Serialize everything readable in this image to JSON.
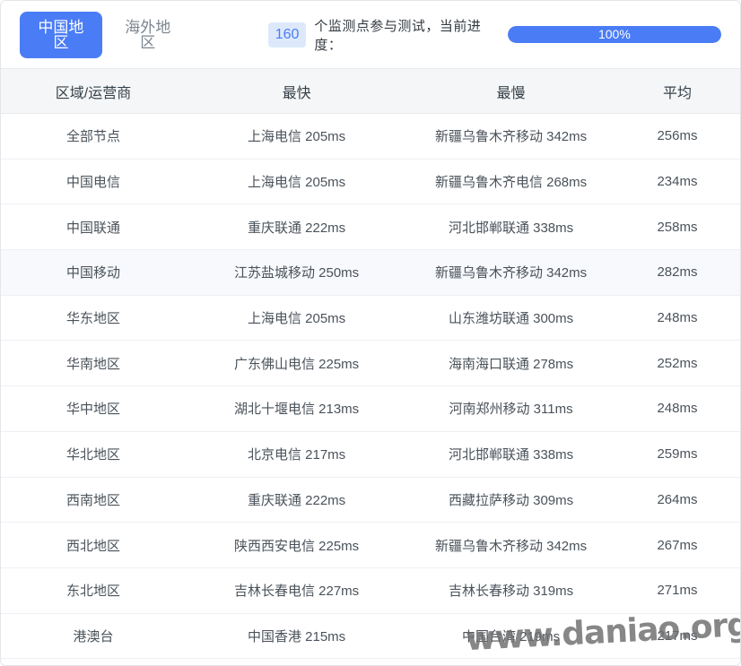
{
  "tabs": {
    "china": "中国地区",
    "overseas": "海外地区"
  },
  "status": {
    "monitor_count": "160",
    "label": "个监测点参与测试，当前进度：",
    "progress_percent": "100%",
    "progress_value": 100
  },
  "table": {
    "headers": {
      "region": "区域/运营商",
      "fastest": "最快",
      "slowest": "最慢",
      "average": "平均"
    },
    "rows": [
      {
        "region": "全部节点",
        "fastest": "上海电信 205ms",
        "slowest": "新疆乌鲁木齐移动 342ms",
        "average": "256ms"
      },
      {
        "region": "中国电信",
        "fastest": "上海电信 205ms",
        "slowest": "新疆乌鲁木齐电信 268ms",
        "average": "234ms"
      },
      {
        "region": "中国联通",
        "fastest": "重庆联通 222ms",
        "slowest": "河北邯郸联通 338ms",
        "average": "258ms"
      },
      {
        "region": "中国移动",
        "fastest": "江苏盐城移动 250ms",
        "slowest": "新疆乌鲁木齐移动 342ms",
        "average": "282ms"
      },
      {
        "region": "华东地区",
        "fastest": "上海电信 205ms",
        "slowest": "山东潍坊联通 300ms",
        "average": "248ms"
      },
      {
        "region": "华南地区",
        "fastest": "广东佛山电信 225ms",
        "slowest": "海南海口联通 278ms",
        "average": "252ms"
      },
      {
        "region": "华中地区",
        "fastest": "湖北十堰电信 213ms",
        "slowest": "河南郑州移动 311ms",
        "average": "248ms"
      },
      {
        "region": "华北地区",
        "fastest": "北京电信 217ms",
        "slowest": "河北邯郸联通 338ms",
        "average": "259ms"
      },
      {
        "region": "西南地区",
        "fastest": "重庆联通 222ms",
        "slowest": "西藏拉萨移动 309ms",
        "average": "264ms"
      },
      {
        "region": "西北地区",
        "fastest": "陕西西安电信 225ms",
        "slowest": "新疆乌鲁木齐移动 342ms",
        "average": "267ms"
      },
      {
        "region": "东北地区",
        "fastest": "吉林长春电信 227ms",
        "slowest": "吉林长春移动 319ms",
        "average": "271ms"
      },
      {
        "region": "港澳台",
        "fastest": "中国香港 215ms",
        "slowest": "中国台湾 219ms",
        "average": "217ms"
      }
    ]
  },
  "watermark": "www.daniao.org",
  "colors": {
    "accent_blue": "#4a7cf5",
    "badge_bg": "#dde9fb",
    "header_bg": "#f5f6f7",
    "row_highlight_bg": "#f7f9fc",
    "row_border": "#eef0f4",
    "cell_text": "#4a525a",
    "inactive_tab_text": "#7c8690",
    "watermark_gray": "#6c6c6c"
  }
}
